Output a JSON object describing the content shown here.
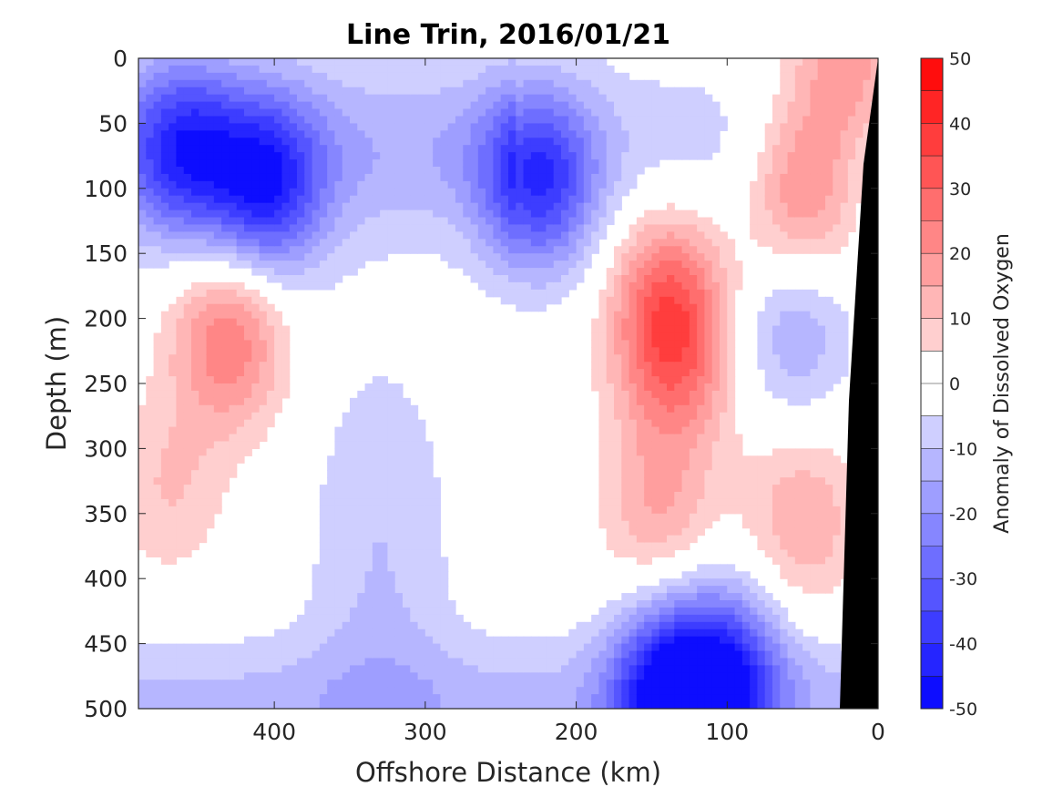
{
  "chart_data": {
    "type": "heatmap",
    "title": "Line Trin, 2016/01/21",
    "xlabel": "Offshore Distance (km)",
    "ylabel": "Depth (m)",
    "colorbar_label": "Anomaly of Dissolved Oxygen",
    "xlim": [
      490,
      0
    ],
    "ylim": [
      0,
      500
    ],
    "x_reversed": true,
    "y_reversed": true,
    "x_ticks": [
      400,
      300,
      200,
      100,
      0
    ],
    "y_ticks": [
      0,
      50,
      100,
      150,
      200,
      250,
      300,
      350,
      400,
      450,
      500
    ],
    "colorbar_ticks": [
      50,
      40,
      30,
      20,
      10,
      0,
      -10,
      -20,
      -30,
      -40,
      -50
    ],
    "clim": [
      -50,
      50
    ],
    "contour_levels": [
      -50,
      -45,
      -40,
      -35,
      -30,
      -25,
      -20,
      -15,
      -10,
      -5,
      5,
      10,
      15,
      20,
      25,
      30,
      35,
      40,
      45,
      50
    ],
    "zero_contour": true,
    "bathymetry_color": "#000000",
    "colors": {
      "negative_extreme": "#0000ff",
      "neutral": "#ffffff",
      "positive_extreme": "#ff0000"
    },
    "features": [
      {
        "kind": "minimum",
        "x": 405,
        "depth": 100,
        "value": -35
      },
      {
        "kind": "minimum",
        "x": 460,
        "depth": 70,
        "value": -30
      },
      {
        "kind": "minimum",
        "x": 225,
        "depth": 95,
        "value": -35
      },
      {
        "kind": "minimum",
        "x": 140,
        "depth": 485,
        "value": -40
      },
      {
        "kind": "minimum",
        "x": 100,
        "depth": 475,
        "value": -35
      },
      {
        "kind": "minimum",
        "x": 55,
        "depth": 210,
        "value": -15
      },
      {
        "kind": "maximum",
        "x": 430,
        "depth": 215,
        "value": 25
      },
      {
        "kind": "maximum",
        "x": 470,
        "depth": 330,
        "value": 10
      },
      {
        "kind": "maximum",
        "x": 135,
        "depth": 230,
        "value": 25
      },
      {
        "kind": "maximum",
        "x": 140,
        "depth": 175,
        "value": 20
      },
      {
        "kind": "maximum",
        "x": 145,
        "depth": 350,
        "value": 15
      },
      {
        "kind": "maximum",
        "x": 50,
        "depth": 100,
        "value": 25
      },
      {
        "kind": "maximum",
        "x": 20,
        "depth": 10,
        "value": 20
      },
      {
        "kind": "maximum",
        "x": 50,
        "depth": 355,
        "value": 15
      }
    ]
  }
}
